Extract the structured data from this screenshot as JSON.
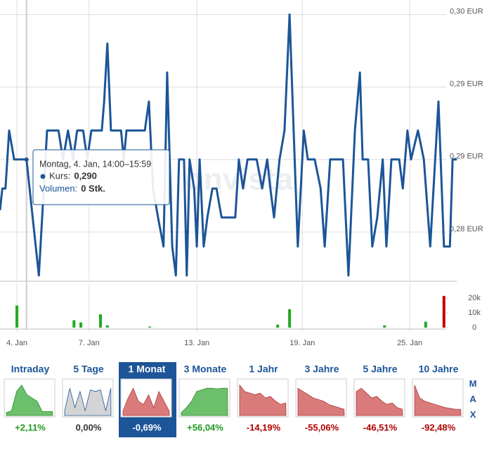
{
  "chart_data": [
    {
      "type": "line",
      "watermark": "onvista",
      "x": [
        0,
        0.5,
        1.2,
        2,
        3.1,
        5.8,
        8.5,
        10.3,
        12.8,
        13.8,
        14.9,
        16,
        16.9,
        18.2,
        19.1,
        20,
        22.3,
        22.8,
        23.5,
        24.3,
        26.5,
        27.1,
        27.7,
        31.7,
        32.6,
        33.5,
        34.6,
        35.8,
        36.6,
        37.7,
        38.5,
        39.2,
        40.3,
        40.9,
        41.5,
        42.5,
        43.1,
        43.7,
        44.6,
        45.4,
        46.5,
        47.4,
        48.5,
        51.5,
        52.3,
        53.2,
        54.2,
        56.2,
        57.4,
        58.5,
        59.2,
        60,
        61.2,
        62.3,
        63.4,
        64.3,
        65.2,
        66.5,
        67.4,
        68.9,
        70.2,
        71.1,
        72.3,
        75.1,
        76.3,
        77.7,
        78.8,
        79.4,
        80.6,
        81.5,
        82.6,
        83.8,
        84.6,
        85.7,
        87.4,
        88.2,
        89.2,
        90,
        91.5,
        92.8,
        94.2,
        96,
        97.2,
        98.5,
        99.1,
        100
      ],
      "series": [
        {
          "color": "#1c5598",
          "values": [
            0.2865,
            0.288,
            0.288,
            0.292,
            0.29,
            0.29,
            0.282,
            0.292,
            0.292,
            0.29,
            0.292,
            0.29,
            0.292,
            0.292,
            0.29,
            0.292,
            0.292,
            0.294,
            0.298,
            0.292,
            0.292,
            0.29,
            0.292,
            0.292,
            0.294,
            0.288,
            0.286,
            0.284,
            0.296,
            0.284,
            0.282,
            0.29,
            0.29,
            0.282,
            0.29,
            0.288,
            0.284,
            0.29,
            0.284,
            0.286,
            0.288,
            0.288,
            0.286,
            0.286,
            0.29,
            0.288,
            0.29,
            0.29,
            0.288,
            0.29,
            0.288,
            0.286,
            0.29,
            0.292,
            0.3,
            0.292,
            0.284,
            0.292,
            0.29,
            0.29,
            0.288,
            0.284,
            0.29,
            0.29,
            0.282,
            0.292,
            0.296,
            0.29,
            0.29,
            0.284,
            0.286,
            0.29,
            0.284,
            0.29,
            0.29,
            0.288,
            0.292,
            0.29,
            0.292,
            0.29,
            0.284,
            0.294,
            0.284,
            0.284,
            0.29,
            0.29
          ]
        }
      ],
      "xlim": [
        0,
        100
      ],
      "ylim": [
        0.2817,
        0.301
      ],
      "yticks": [
        {
          "value": 0.3,
          "label": "0,30 EUR"
        },
        {
          "value": 0.295,
          "label": "0,29 EUR"
        },
        {
          "value": 0.29,
          "label": "0,29 EUR"
        },
        {
          "value": 0.285,
          "label": "0,28 EUR"
        }
      ],
      "grid": true
    },
    {
      "type": "bar",
      "x": [
        3.7,
        16.2,
        17.7,
        22,
        23.5,
        32.8,
        60.8,
        63.4,
        84.2,
        93.2,
        97.2
      ],
      "values": [
        15000,
        5000,
        3500,
        9000,
        1500,
        700,
        2000,
        12500,
        1500,
        4000,
        21500
      ],
      "colors": [
        "#22aa22",
        "#22aa22",
        "#22aa22",
        "#22aa22",
        "#22aa22",
        "#22aa22",
        "#22aa22",
        "#22aa22",
        "#22aa22",
        "#22aa22",
        "#c00000"
      ],
      "xlim": [
        0,
        100
      ],
      "ylim": [
        -1000,
        30000
      ],
      "yticks": [
        {
          "value": 20000,
          "label": "20k"
        },
        {
          "value": 10000,
          "label": "10k"
        },
        0
      ],
      "xticks": [
        {
          "value": 3.7,
          "label": "4. Jan"
        },
        {
          "value": 19.5,
          "label": "7. Jan"
        },
        {
          "value": 43.1,
          "label": "13. Jan"
        },
        {
          "value": 66.2,
          "label": "19. Jan"
        },
        {
          "value": 89.7,
          "label": "25. Jan"
        }
      ],
      "grid": true
    }
  ],
  "tooltip": {
    "title": "Montag, 4. Jan, 14:00–15:59",
    "price_label": "Kurs:",
    "price": "0,290",
    "volume_label": "Volumen:",
    "volume": "0 Stk."
  },
  "period_tabs": [
    {
      "label": "Intraday",
      "change": 2.11,
      "change_label": "+2,11%"
    },
    {
      "label": "5 Tage",
      "change": 0,
      "change_label": "0,00%"
    },
    {
      "label": "1 Monat",
      "change": -0.69,
      "change_label": "-0,69%",
      "active": true
    },
    {
      "label": "3 Monate",
      "change": 56.04,
      "change_label": "+56,04%"
    },
    {
      "label": "1 Jahr",
      "change": -14.19,
      "change_label": "-14,19%"
    },
    {
      "label": "3 Jahre",
      "change": -55.06,
      "change_label": "-55,06%"
    },
    {
      "label": "5 Jahre",
      "change": -46.51,
      "change_label": "-46,51%"
    },
    {
      "label": "10 Jahre",
      "change": -92.48,
      "change_label": "-92,48%"
    }
  ],
  "max_label": "MAX"
}
